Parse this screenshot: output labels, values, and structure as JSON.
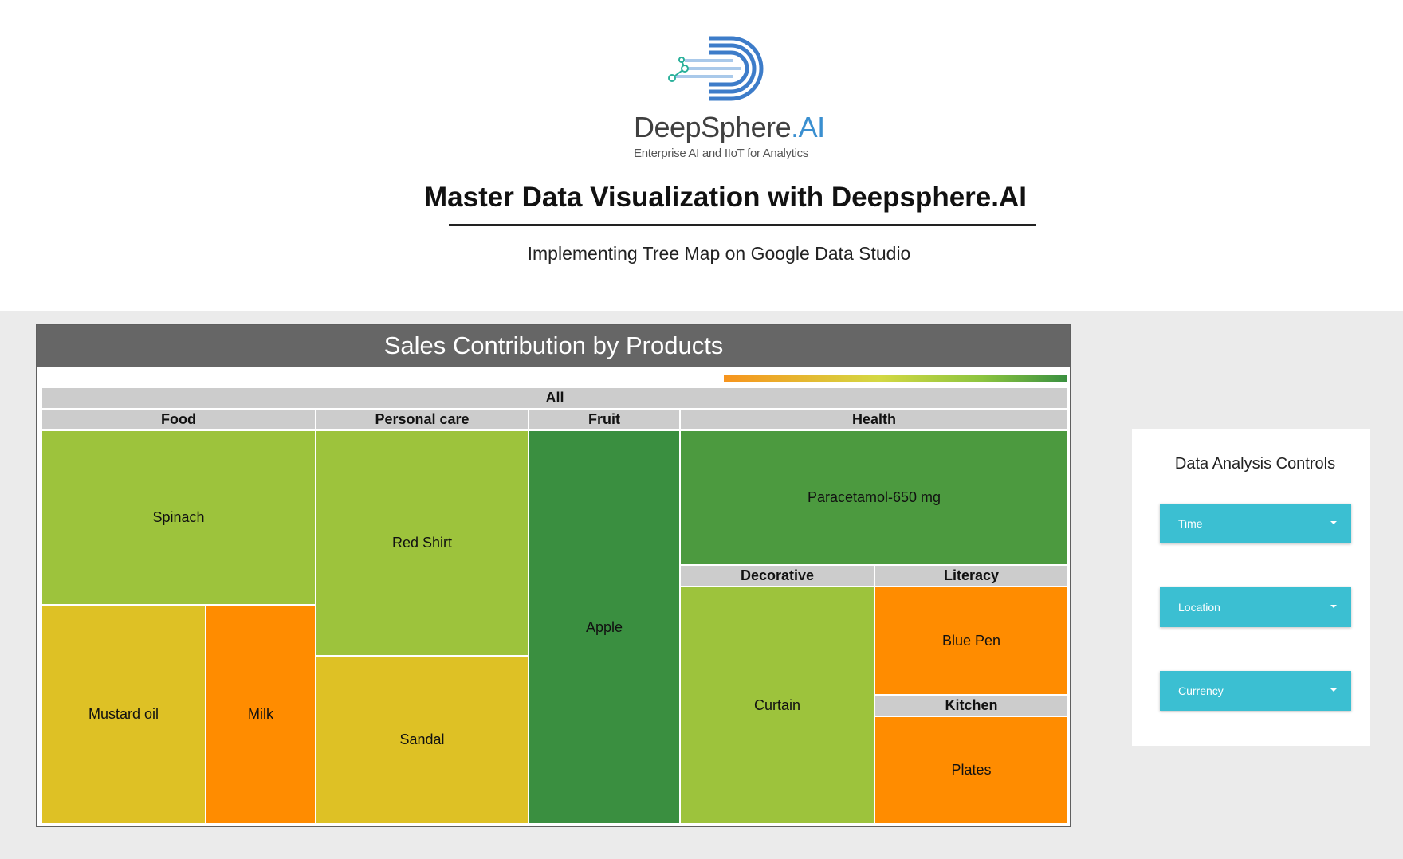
{
  "header": {
    "brand_name": "DeepSphere",
    "brand_suffix": ".AI",
    "tagline": "Enterprise AI and IIoT for Analytics",
    "title": "Master Data Visualization with Deepsphere.AI",
    "subtitle": "Implementing Tree Map  on Google Data Studio"
  },
  "chart_card": {
    "title": "Sales Contribution by Products"
  },
  "chart_data": {
    "type": "treemap",
    "title": "Sales Contribution by Products",
    "root": "All",
    "color_scale": [
      "#f7941d",
      "#d4d843",
      "#8cc43f",
      "#3a9040"
    ],
    "groups": [
      {
        "name": "Food",
        "items": [
          {
            "name": "Spinach",
            "color": "#9dc33c"
          },
          {
            "name": "Mustard oil",
            "color": "#dec125"
          },
          {
            "name": "Milk",
            "color": "#ff8c00"
          }
        ]
      },
      {
        "name": "Personal care",
        "items": [
          {
            "name": "Red Shirt",
            "color": "#9dc33c"
          },
          {
            "name": "Sandal",
            "color": "#dec125"
          }
        ]
      },
      {
        "name": "Fruit",
        "items": [
          {
            "name": "Apple",
            "color": "#3a8f40"
          }
        ]
      },
      {
        "name": "Health",
        "items": [
          {
            "name": "Paracetamol-650 mg",
            "color": "#4c9a3f"
          }
        ]
      },
      {
        "name": "Decorative",
        "items": [
          {
            "name": "Curtain",
            "color": "#9dc33c"
          }
        ]
      },
      {
        "name": "Literacy",
        "items": [
          {
            "name": "Blue Pen",
            "color": "#ff8c00"
          }
        ]
      },
      {
        "name": "Kitchen",
        "items": [
          {
            "name": "Plates",
            "color": "#ff8c00"
          }
        ]
      }
    ]
  },
  "controls": {
    "title": "Data Analysis Controls",
    "time_label": "Time",
    "location_label": "Location",
    "currency_label": "Currency"
  },
  "colors": {
    "header_bar": "#666666",
    "canvas_bg": "#ebebeb",
    "dropdown_bg": "#3bbfd2",
    "group_header": "#cccccc"
  }
}
